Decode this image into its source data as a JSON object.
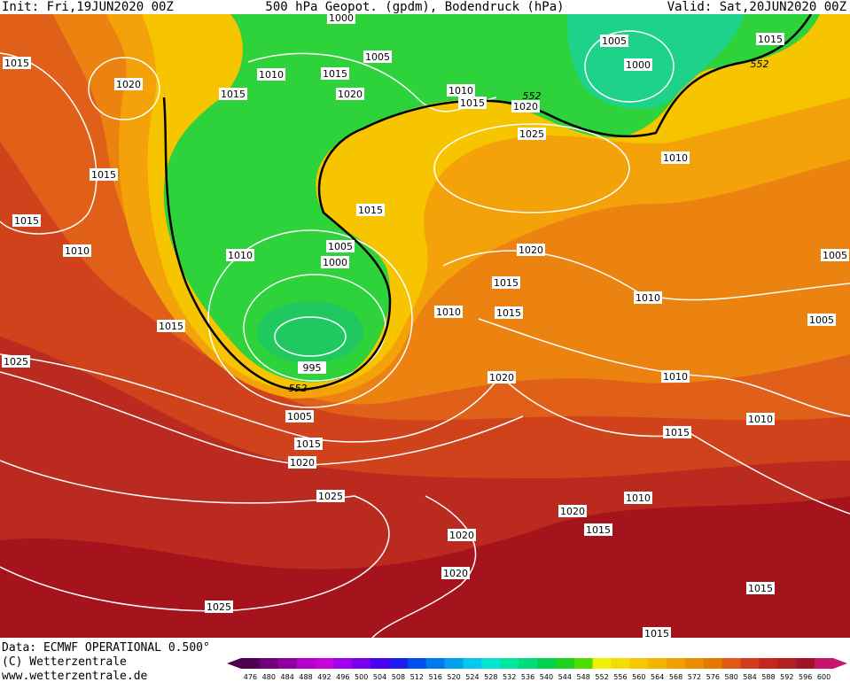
{
  "header": {
    "init": "Init: Fri,19JUN2020 00Z",
    "title": "500 hPa Geopot. (gpdm), Bodendruck (hPa)",
    "valid": "Valid: Sat,20JUN2020 00Z"
  },
  "footer": {
    "data": "Data: ECMWF OPERATIONAL 0.500°",
    "copyright": "(C) Wetterzentrale",
    "website": "www.wetterzentrale.de"
  },
  "labels": [
    "1000",
    "1005",
    "1015",
    "1010",
    "1015",
    "1020",
    "1015",
    "1020",
    "1005",
    "1000",
    "1015",
    "552",
    "1010",
    "1015",
    "552",
    "1020",
    "1025",
    "1010",
    "1015",
    "1015",
    "1010",
    "1015",
    "1005",
    "1000",
    "1010",
    "1020",
    "1005",
    "1015",
    "1015",
    "1010",
    "1010",
    "1015",
    "1005",
    "1025",
    "995",
    "552",
    "1020",
    "1010",
    "1010",
    "1005",
    "1015",
    "1015",
    "1020",
    "1025",
    "1010",
    "1020",
    "1015",
    "1020",
    "1020",
    "1015",
    "1025",
    "1015"
  ],
  "colorbar": {
    "values": [
      476,
      480,
      484,
      488,
      492,
      496,
      500,
      504,
      508,
      512,
      516,
      520,
      524,
      528,
      532,
      536,
      540,
      544,
      548,
      552,
      556,
      560,
      564,
      568,
      572,
      576,
      580,
      584,
      588,
      592,
      596,
      600
    ],
    "colors": [
      "#4b0050",
      "#6e0078",
      "#8c00a0",
      "#b400c8",
      "#c800dc",
      "#a000f0",
      "#7800f0",
      "#4b00f0",
      "#1e1ef0",
      "#0050f0",
      "#0078f0",
      "#00a0f0",
      "#00c8f0",
      "#00e6d2",
      "#00e6a0",
      "#00dc78",
      "#00d250",
      "#1ed21e",
      "#50dc00",
      "#f0f000",
      "#f5dc00",
      "#f5c800",
      "#f5b400",
      "#f0a000",
      "#eb8c00",
      "#e67800",
      "#e15a14",
      "#d23c1e",
      "#c3281e",
      "#b41e1e",
      "#a01428",
      "#c8146e"
    ]
  }
}
